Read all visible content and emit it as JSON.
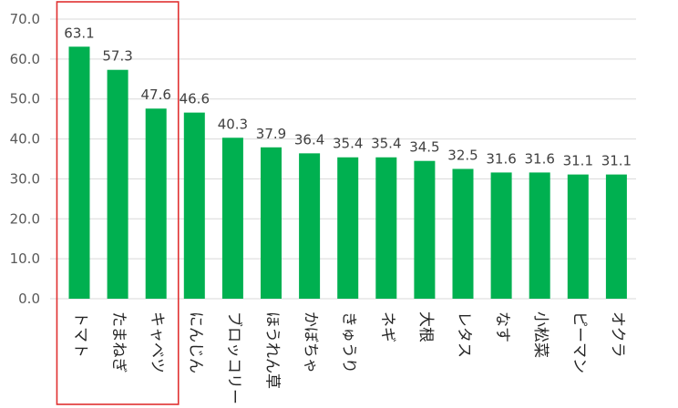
{
  "chart_data": {
    "type": "bar",
    "title": "",
    "xlabel": "",
    "ylabel": "",
    "ylim": [
      0,
      70
    ],
    "yticks": [
      0,
      10,
      20,
      30,
      40,
      50,
      60,
      70
    ],
    "ytick_labels": [
      "0.0",
      "10.0",
      "20.0",
      "30.0",
      "40.0",
      "50.0",
      "60.0",
      "70.0"
    ],
    "grid": true,
    "categories": [
      "トマト",
      "たまねぎ",
      "キャベツ",
      "にんじん",
      "ブロッコリー",
      "ほうれん草",
      "かぼちゃ",
      "きゅうり",
      "ネギ",
      "大根",
      "レタス",
      "なす",
      "小松菜",
      "ピーマン",
      "オクラ"
    ],
    "values": [
      63.1,
      57.3,
      47.6,
      46.6,
      40.3,
      37.9,
      36.4,
      35.4,
      35.4,
      34.5,
      32.5,
      31.6,
      31.6,
      31.1,
      31.1
    ],
    "value_labels": [
      "63.1",
      "57.3",
      "47.6",
      "46.6",
      "40.3",
      "37.9",
      "36.4",
      "35.4",
      "35.4",
      "34.5",
      "32.5",
      "31.6",
      "31.6",
      "31.1",
      "31.1"
    ],
    "bar_color": "#00b050",
    "highlight": {
      "categories": [
        "トマト",
        "たまねぎ",
        "キャベツ"
      ],
      "color": "#e03030"
    }
  }
}
